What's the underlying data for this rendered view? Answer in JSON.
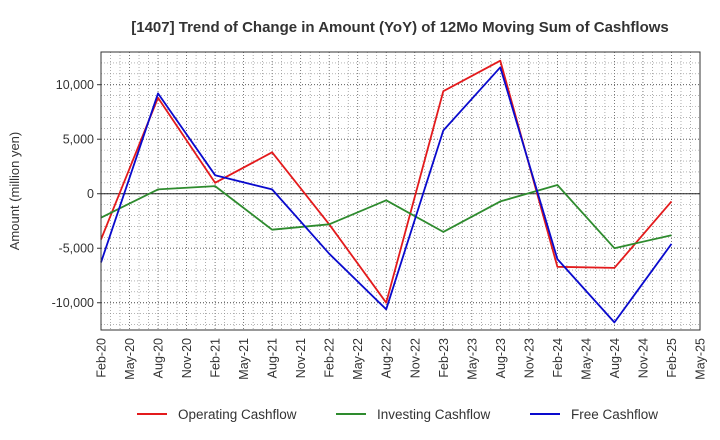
{
  "chart_data": {
    "type": "line",
    "title": "[1407]  Trend of Change in Amount (YoY) of 12Mo Moving Sum of Cashflows",
    "xlabel": "",
    "ylabel": "Amount (million yen)",
    "ylim": [
      -12500,
      13000
    ],
    "yticks": [
      10000,
      5000,
      0,
      -5000,
      -10000
    ],
    "ytick_labels": [
      "10,000",
      "5,000",
      "0",
      "-5,000",
      "-10,000"
    ],
    "x_tick_labels": [
      "Feb-20",
      "May-20",
      "Aug-20",
      "Nov-20",
      "Feb-21",
      "May-21",
      "Aug-21",
      "Nov-21",
      "Feb-22",
      "May-22",
      "Aug-22",
      "Nov-22",
      "Feb-23",
      "May-23",
      "Aug-23",
      "Nov-23",
      "Feb-24",
      "May-24",
      "Aug-24",
      "Nov-24",
      "Feb-25",
      "May-25"
    ],
    "x": [
      "Feb-20",
      "Aug-20",
      "Feb-21",
      "Aug-21",
      "Feb-22",
      "Aug-22",
      "Feb-23",
      "Aug-23",
      "Feb-24",
      "Aug-24",
      "Feb-25"
    ],
    "grid": true,
    "legend_position": "bottom",
    "series": [
      {
        "name": "Operating Cashflow",
        "color": "#e31a1c",
        "values": [
          -4200,
          8800,
          1000,
          3800,
          -2800,
          -10000,
          9400,
          12200,
          -6700,
          -6800,
          -700
        ]
      },
      {
        "name": "Investing Cashflow",
        "color": "#2e8b2e",
        "values": [
          -2200,
          400,
          700,
          -3300,
          -2800,
          -600,
          -3500,
          -700,
          800,
          -5000,
          -3800
        ]
      },
      {
        "name": "Free Cashflow",
        "color": "#0a0acd",
        "values": [
          -6300,
          9200,
          1700,
          400,
          -5500,
          -10600,
          5800,
          11600,
          -6000,
          -11800,
          -4600
        ]
      }
    ]
  }
}
